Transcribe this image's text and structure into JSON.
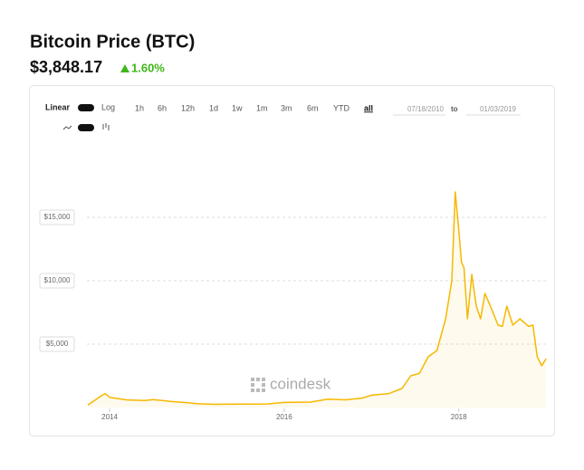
{
  "header": {
    "title": "Bitcoin Price (BTC)",
    "price": "$3,848.17",
    "change": "1.60%"
  },
  "controls": {
    "scales": [
      "Linear",
      "Log"
    ],
    "ranges": [
      "1h",
      "6h",
      "12h",
      "1d",
      "1w",
      "1m",
      "3m",
      "6m",
      "YTD",
      "all"
    ],
    "from": "07/18/2010",
    "to_label": "to",
    "to": "01/03/2019"
  },
  "watermark": "coindesk",
  "chart_data": {
    "type": "line",
    "color": "#f5b800",
    "x": [
      2013.75,
      2013.9,
      2013.95,
      2014.0,
      2014.1,
      2014.2,
      2014.4,
      2014.5,
      2014.7,
      2014.9,
      2015.0,
      2015.2,
      2015.5,
      2015.8,
      2016.0,
      2016.3,
      2016.5,
      2016.7,
      2016.9,
      2017.0,
      2017.2,
      2017.35,
      2017.45,
      2017.55,
      2017.65,
      2017.75,
      2017.85,
      2017.92,
      2017.96,
      2018.0,
      2018.03,
      2018.06,
      2018.1,
      2018.15,
      2018.2,
      2018.25,
      2018.3,
      2018.35,
      2018.45,
      2018.5,
      2018.55,
      2018.62,
      2018.7,
      2018.8,
      2018.85,
      2018.9,
      2018.95,
      2019.0
    ],
    "values": [
      200,
      900,
      1100,
      800,
      700,
      600,
      550,
      620,
      480,
      370,
      300,
      250,
      270,
      280,
      400,
      430,
      660,
      610,
      750,
      970,
      1100,
      1500,
      2500,
      2700,
      4000,
      4500,
      7000,
      10000,
      17000,
      14000,
      11500,
      11000,
      7000,
      10500,
      8000,
      7000,
      9000,
      8200,
      6500,
      6400,
      8000,
      6500,
      7000,
      6400,
      6500,
      4000,
      3300,
      3850
    ],
    "xlim": [
      2013.74,
      2019.02
    ],
    "xticks": [
      2014,
      2016,
      2018
    ],
    "ylim": [
      0,
      20000
    ],
    "yticks": [
      {
        "value": 5000,
        "label": "$5,000"
      },
      {
        "value": 10000,
        "label": "$10,000"
      },
      {
        "value": 15000,
        "label": "$15,000"
      }
    ],
    "grid": true
  }
}
